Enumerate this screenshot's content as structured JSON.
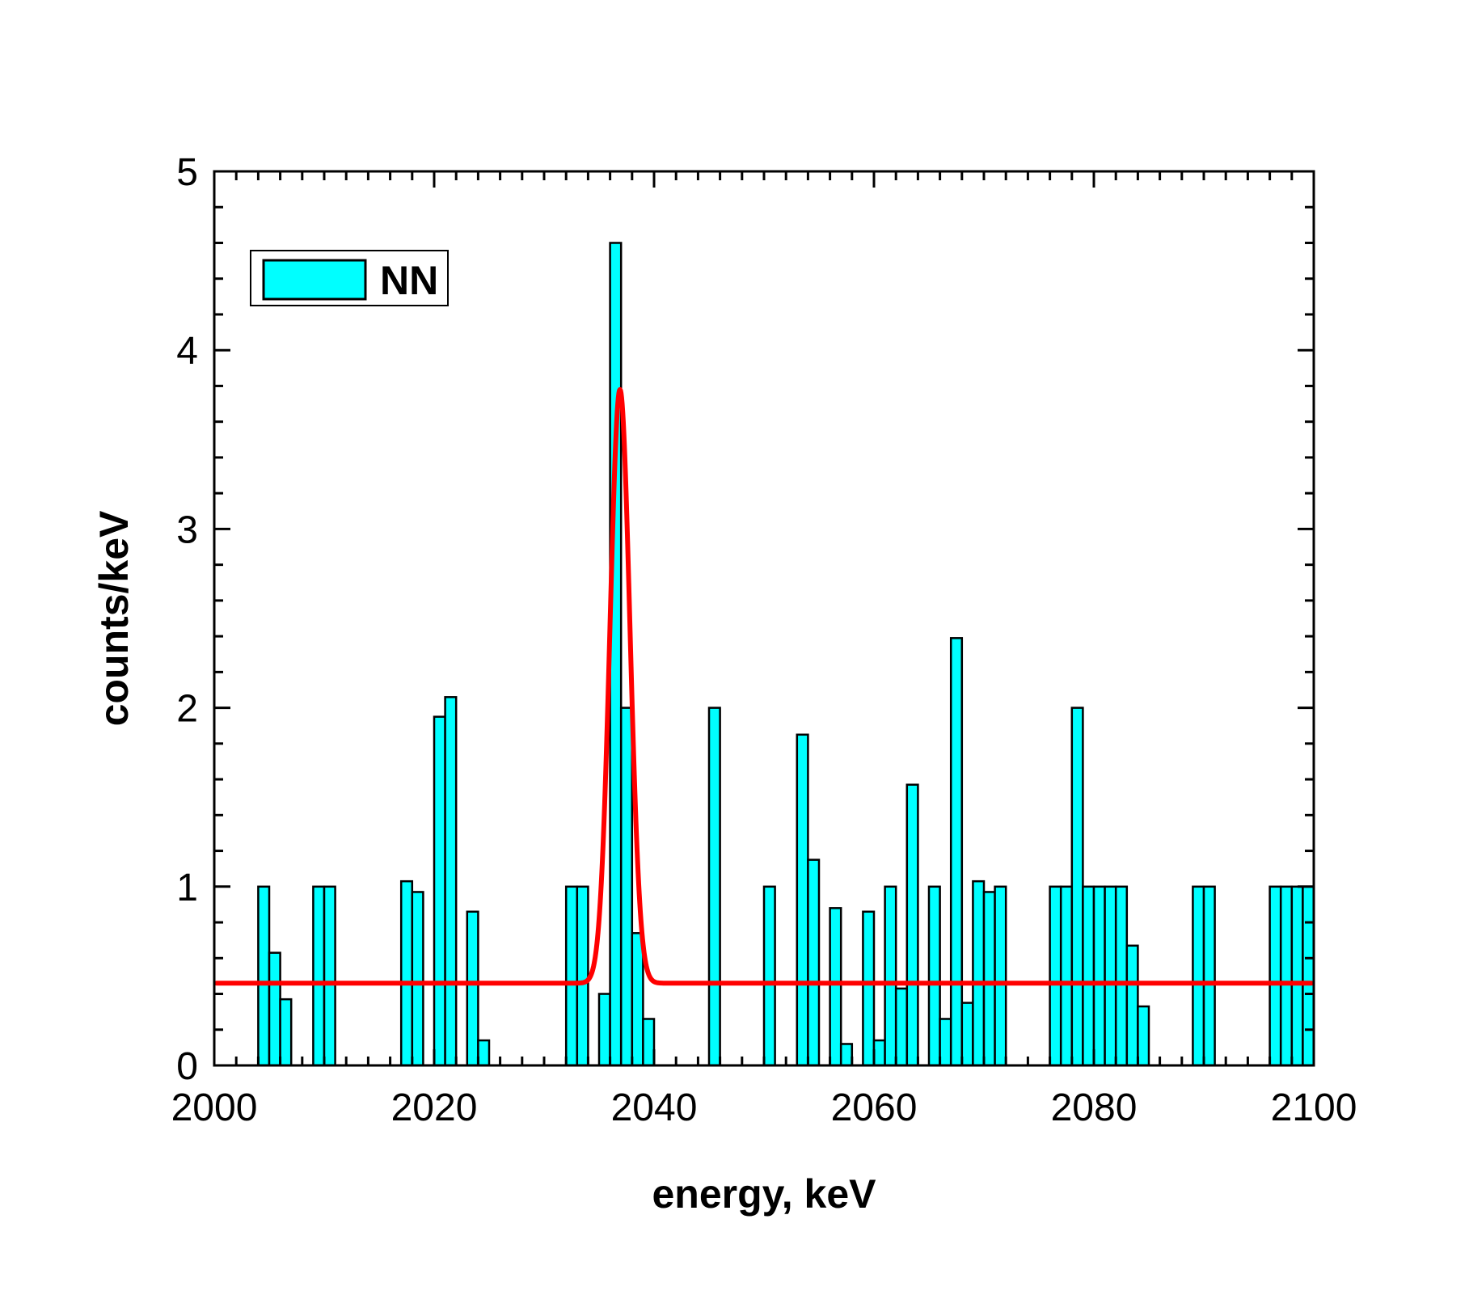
{
  "chart_data": {
    "type": "bar",
    "title": "",
    "xlabel": "energy, keV",
    "ylabel": "counts/keV",
    "xlim": [
      2000,
      2100
    ],
    "ylim": [
      0,
      5
    ],
    "bin_width": 1,
    "x_ticks": [
      2000,
      2020,
      2040,
      2060,
      2080,
      2100
    ],
    "x_tick_labels": [
      "2000",
      "2020",
      "2040",
      "2060",
      "2080",
      "2100"
    ],
    "y_ticks": [
      0,
      1,
      2,
      3,
      4,
      5
    ],
    "y_tick_labels": [
      "0",
      "1",
      "2",
      "3",
      "4",
      "5"
    ],
    "grid": false,
    "legend": {
      "position": "top-left",
      "entries": [
        {
          "label": "NN",
          "color": "#00ffff"
        }
      ]
    },
    "series": [
      {
        "name": "NN",
        "kind": "histogram",
        "color": "#00ffff",
        "edge_color": "#000000",
        "bin_starts": [
          2004,
          2005,
          2006,
          2009,
          2010,
          2017,
          2018,
          2020,
          2021,
          2023,
          2024,
          2032,
          2033,
          2035,
          2036,
          2037,
          2038,
          2039,
          2045,
          2050,
          2053,
          2054,
          2056,
          2057,
          2059,
          2060,
          2061,
          2062,
          2063,
          2065,
          2066,
          2067,
          2068,
          2069,
          2070,
          2071,
          2076,
          2077,
          2078,
          2079,
          2080,
          2081,
          2082,
          2083,
          2084,
          2089,
          2090,
          2096,
          2097,
          2098,
          2099
        ],
        "values": [
          1.0,
          0.63,
          0.37,
          1.0,
          1.0,
          1.03,
          0.97,
          1.95,
          2.06,
          0.86,
          0.14,
          1.0,
          1.0,
          0.4,
          4.6,
          2.0,
          0.74,
          0.26,
          2.0,
          1.0,
          1.85,
          1.15,
          0.88,
          0.12,
          0.86,
          0.14,
          1.0,
          0.43,
          1.57,
          1.0,
          0.26,
          2.39,
          0.35,
          1.03,
          0.97,
          1.0,
          1.0,
          1.0,
          2.0,
          1.0,
          1.0,
          1.0,
          1.0,
          0.67,
          0.33,
          1.0,
          1.0,
          1.0,
          1.0,
          1.0,
          1.0
        ]
      },
      {
        "name": "fit",
        "kind": "line",
        "color": "#ff0000",
        "function": "gaussian_plus_constant",
        "baseline": 0.46,
        "amplitude": 3.32,
        "center": 2036.9,
        "sigma": 0.9,
        "x_range": [
          2000.2,
          2099.8
        ]
      }
    ]
  }
}
